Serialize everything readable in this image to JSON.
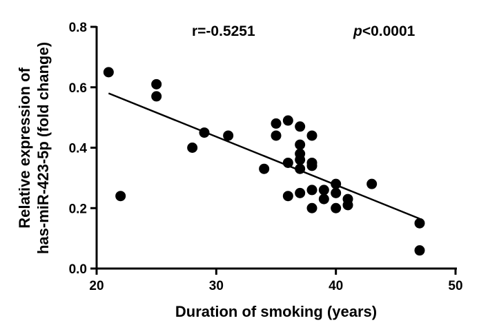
{
  "chart_data": {
    "type": "scatter",
    "xlabel": "Duration of smoking (years)",
    "ylabel_lines": [
      "Relative expression of",
      "has-miR-423-5p (fold change)"
    ],
    "xlim": [
      20,
      50
    ],
    "ylim": [
      0.0,
      0.8
    ],
    "x_ticks": [
      20,
      30,
      40,
      50
    ],
    "y_ticks": [
      0.0,
      0.2,
      0.4,
      0.6,
      0.8
    ],
    "x_tick_labels": [
      "20",
      "30",
      "40",
      "50"
    ],
    "y_tick_labels": [
      "0.0",
      "0.2",
      "0.4",
      "0.6",
      "0.8"
    ],
    "points": [
      {
        "x": 21,
        "y": 0.65
      },
      {
        "x": 22,
        "y": 0.24
      },
      {
        "x": 25,
        "y": 0.61
      },
      {
        "x": 25,
        "y": 0.57
      },
      {
        "x": 28,
        "y": 0.4
      },
      {
        "x": 29,
        "y": 0.45
      },
      {
        "x": 31,
        "y": 0.44
      },
      {
        "x": 34,
        "y": 0.33
      },
      {
        "x": 35,
        "y": 0.48
      },
      {
        "x": 35,
        "y": 0.44
      },
      {
        "x": 36,
        "y": 0.49
      },
      {
        "x": 36,
        "y": 0.35
      },
      {
        "x": 36,
        "y": 0.24
      },
      {
        "x": 37,
        "y": 0.47
      },
      {
        "x": 37,
        "y": 0.41
      },
      {
        "x": 37,
        "y": 0.38
      },
      {
        "x": 37,
        "y": 0.36
      },
      {
        "x": 37,
        "y": 0.33
      },
      {
        "x": 37,
        "y": 0.25
      },
      {
        "x": 38,
        "y": 0.44
      },
      {
        "x": 38,
        "y": 0.35
      },
      {
        "x": 38,
        "y": 0.34
      },
      {
        "x": 38,
        "y": 0.26
      },
      {
        "x": 38,
        "y": 0.2
      },
      {
        "x": 39,
        "y": 0.26
      },
      {
        "x": 39,
        "y": 0.23
      },
      {
        "x": 40,
        "y": 0.28
      },
      {
        "x": 40,
        "y": 0.25
      },
      {
        "x": 40,
        "y": 0.2
      },
      {
        "x": 41,
        "y": 0.23
      },
      {
        "x": 41,
        "y": 0.21
      },
      {
        "x": 43,
        "y": 0.28
      },
      {
        "x": 47,
        "y": 0.15
      },
      {
        "x": 47,
        "y": 0.06
      }
    ],
    "fit_line": {
      "x": [
        21,
        47
      ],
      "y": [
        0.58,
        0.165
      ]
    },
    "annotations": {
      "r_text": "r=-0.5251",
      "p_italic": "p",
      "p_rest": "<0.0001"
    },
    "grid": false,
    "legend": "none"
  }
}
